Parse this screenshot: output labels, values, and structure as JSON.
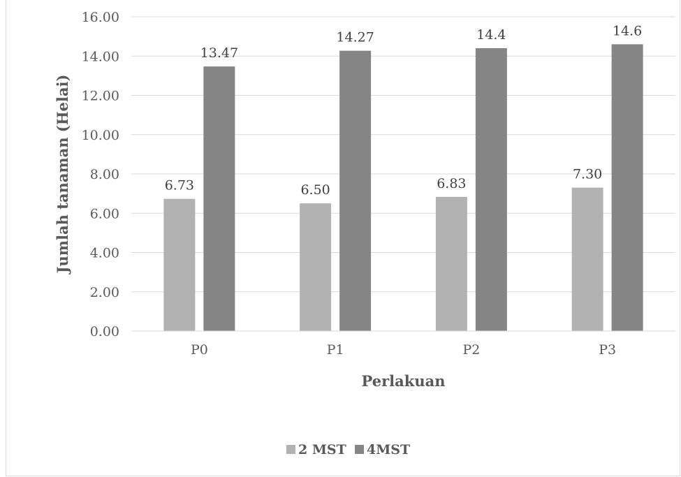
{
  "chart_data": {
    "type": "bar",
    "title": "",
    "xlabel": "Perlakuan",
    "ylabel": "Jumlah tanaman (Helai)",
    "categories": [
      "P0",
      "P1",
      "P2",
      "P3"
    ],
    "series": [
      {
        "name": "2 MST",
        "values": [
          6.73,
          6.5,
          6.83,
          7.3
        ],
        "labels": [
          "6.73",
          "6.50",
          "6.83",
          "7.30"
        ],
        "color": "#b2b2b2"
      },
      {
        "name": "4MST",
        "values": [
          13.47,
          14.27,
          14.4,
          14.6
        ],
        "labels": [
          "13.47",
          "14.27",
          "14.4",
          "14.6"
        ],
        "color": "#858585"
      }
    ],
    "ylim": [
      0,
      16
    ],
    "yticks": [
      "0.00",
      "2.00",
      "4.00",
      "6.00",
      "8.00",
      "10.00",
      "12.00",
      "14.00",
      "16.00"
    ],
    "grid": true,
    "legend_position": "bottom"
  }
}
